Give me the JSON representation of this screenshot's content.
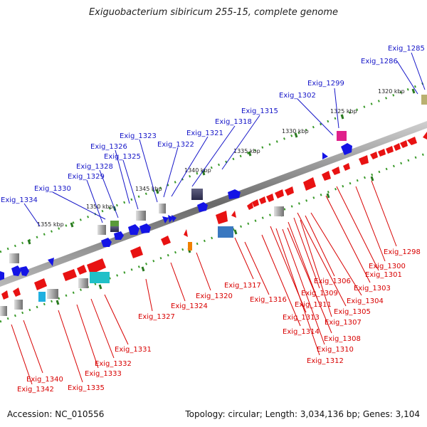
{
  "title": "Exiguobacterium sibiricum 255-15, complete genome",
  "footer": {
    "accession": "Accession: NC_010556",
    "topology": "Topology: circular; Length: 3,034,136 bp; Genes: 3,104"
  },
  "colors": {
    "forward_label": "#1515c8",
    "reverse_label": "#d80000",
    "forward_gene": "#1414e6",
    "reverse_gene": "#e81212",
    "backbone": "#8a8a8a",
    "track_dots": "#3a9a2a"
  },
  "ticks": [
    "1320 kbp",
    "1325 kbp",
    "1330 kbp",
    "1335 kbp",
    "1340 kbp",
    "1345 kbp",
    "1350 kbp",
    "1355 kbp"
  ],
  "top_labels": [
    "Exig_1285",
    "Exig_1286",
    "Exig_1299",
    "Exig_1302",
    "Exig_1315",
    "Exig_1318",
    "Exig_1321",
    "Exig_1322",
    "Exig_1323",
    "Exig_1326",
    "Exig_1325",
    "Exig_1328",
    "Exig_1329",
    "Exig_1330",
    "Exig_1334"
  ],
  "bottom_labels": [
    "Exig_1298",
    "Exig_1300",
    "Exig_1301",
    "Exig_1306",
    "Exig_1303",
    "Exig_1304",
    "Exig_1305",
    "Exig_1309",
    "Exig_1311",
    "Exig_1307",
    "Exig_1308",
    "Exig_1310",
    "Exig_1312",
    "Exig_1313",
    "Exig_1314",
    "Exig_1316",
    "Exig_1317",
    "Exig_1320",
    "Exig_1324",
    "Exig_1327",
    "Exig_1331",
    "Exig_1332",
    "Exig_1333",
    "Exig_1335",
    "Exig_1340",
    "Exig_1342"
  ]
}
